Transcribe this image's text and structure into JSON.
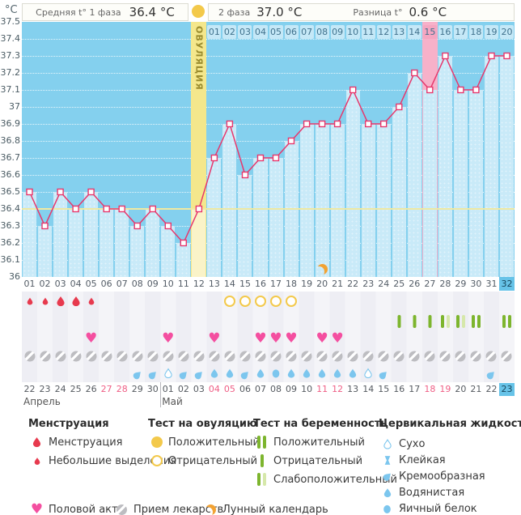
{
  "header": {
    "unit_label": "°C",
    "phase1_label": "Средняя t° 1 фаза",
    "phase1_value": "36.4 °C",
    "phase2_label": "2 фаза",
    "phase2_value": "37.0 °C",
    "diff_label": "Разница t°",
    "diff_value": "0.6 °C"
  },
  "chart_data": {
    "type": "line",
    "title": "График базальной температуры",
    "ylabel": "°C",
    "ylim": [
      36.0,
      37.5
    ],
    "ytick_step": 0.1,
    "grid": true,
    "x_labels": [
      "01",
      "02",
      "03",
      "04",
      "05",
      "06",
      "07",
      "08",
      "09",
      "10",
      "11",
      "12",
      "13",
      "14",
      "15",
      "16",
      "17",
      "18",
      "19",
      "20",
      "21",
      "22",
      "23",
      "24",
      "25",
      "26",
      "27",
      "28",
      "29",
      "30",
      "31",
      "32"
    ],
    "values": [
      36.5,
      36.3,
      36.5,
      36.4,
      36.5,
      36.4,
      36.4,
      36.3,
      36.4,
      36.3,
      36.2,
      36.4,
      36.7,
      36.9,
      36.6,
      36.7,
      36.7,
      36.8,
      36.9,
      36.9,
      36.9,
      37.1,
      36.9,
      36.9,
      37.0,
      37.2,
      37.1,
      37.3,
      37.1,
      37.1,
      37.3,
      37.3
    ],
    "coverline": 36.4,
    "ovulation_day": 12,
    "ovulation_label": "ОВУЛЯЦИЯ",
    "dpo_labels": [
      "01",
      "02",
      "03",
      "04",
      "05",
      "06",
      "07",
      "08",
      "09",
      "10",
      "11",
      "12",
      "13",
      "14",
      "15",
      "16",
      "17",
      "18",
      "19",
      "20"
    ],
    "dpo_highlight": "15",
    "highlight_day": 27,
    "moon_day": 20,
    "current_day": 32
  },
  "tracking_rows": {
    "menstruation": [
      {
        "day": 1,
        "intensity": "light"
      },
      {
        "day": 2,
        "intensity": "light"
      },
      {
        "day": 3,
        "intensity": "heavy"
      },
      {
        "day": 4,
        "intensity": "heavy"
      },
      {
        "day": 5,
        "intensity": "light"
      }
    ],
    "ovulation_tests": [
      {
        "day": 14,
        "result": "negative"
      },
      {
        "day": 15,
        "result": "negative"
      },
      {
        "day": 16,
        "result": "negative"
      },
      {
        "day": 17,
        "result": "negative"
      },
      {
        "day": 18,
        "result": "negative"
      }
    ],
    "pregnancy_tests": [
      {
        "day": 25,
        "result": "negative"
      },
      {
        "day": 26,
        "result": "negative"
      },
      {
        "day": 27,
        "result": "negative"
      },
      {
        "day": 28,
        "result": "weak_positive"
      },
      {
        "day": 29,
        "result": "weak_positive"
      },
      {
        "day": 30,
        "result": "positive"
      },
      {
        "day": 32,
        "result": "positive"
      }
    ],
    "intercourse_days": [
      5,
      10,
      13,
      16,
      17,
      18,
      20,
      21
    ],
    "medication_days": [
      1,
      2,
      3,
      4,
      5,
      6,
      7,
      8,
      9,
      10,
      11,
      12,
      13,
      14,
      15,
      16,
      17,
      18,
      19,
      20,
      21,
      22,
      23,
      24,
      25,
      26,
      27,
      28,
      29,
      30,
      31,
      32
    ],
    "cervical_fluid": [
      {
        "day": 8,
        "type": "creamy"
      },
      {
        "day": 9,
        "type": "creamy"
      },
      {
        "day": 10,
        "type": "dry"
      },
      {
        "day": 11,
        "type": "creamy"
      },
      {
        "day": 12,
        "type": "creamy"
      },
      {
        "day": 13,
        "type": "watery"
      },
      {
        "day": 14,
        "type": "watery"
      },
      {
        "day": 15,
        "type": "creamy"
      },
      {
        "day": 16,
        "type": "watery"
      },
      {
        "day": 17,
        "type": "egg_white"
      },
      {
        "day": 18,
        "type": "watery"
      },
      {
        "day": 19,
        "type": "watery"
      },
      {
        "day": 20,
        "type": "watery"
      },
      {
        "day": 21,
        "type": "watery"
      },
      {
        "day": 22,
        "type": "watery"
      },
      {
        "day": 23,
        "type": "dry"
      },
      {
        "day": 24,
        "type": "creamy"
      },
      {
        "day": 31,
        "type": "creamy"
      }
    ]
  },
  "dates": {
    "months": [
      {
        "label": "Апрель",
        "days": [
          {
            "d": "22"
          },
          {
            "d": "23"
          },
          {
            "d": "24"
          },
          {
            "d": "25"
          },
          {
            "d": "26"
          },
          {
            "d": "27",
            "weekend": true
          },
          {
            "d": "28",
            "weekend": true
          },
          {
            "d": "29"
          },
          {
            "d": "30"
          }
        ]
      },
      {
        "label": "Май",
        "days": [
          {
            "d": "01"
          },
          {
            "d": "02"
          },
          {
            "d": "03"
          },
          {
            "d": "04",
            "weekend": true
          },
          {
            "d": "05",
            "weekend": true
          },
          {
            "d": "06"
          },
          {
            "d": "07"
          },
          {
            "d": "08"
          },
          {
            "d": "09"
          },
          {
            "d": "10"
          },
          {
            "d": "11",
            "weekend": true
          },
          {
            "d": "12",
            "weekend": true
          },
          {
            "d": "13"
          },
          {
            "d": "14"
          },
          {
            "d": "15"
          },
          {
            "d": "16"
          },
          {
            "d": "17"
          },
          {
            "d": "18",
            "weekend": true
          },
          {
            "d": "19",
            "weekend": true
          },
          {
            "d": "20"
          },
          {
            "d": "21"
          },
          {
            "d": "22"
          },
          {
            "d": "23",
            "current": true
          }
        ]
      }
    ]
  },
  "legend": {
    "sections": [
      {
        "title": "Менструация",
        "items": [
          {
            "icon": "menstruation-heavy",
            "label": "Менструация"
          },
          {
            "icon": "menstruation-light",
            "label": "Небольшие выделения"
          }
        ]
      },
      {
        "title": "Тест на овуляцию",
        "items": [
          {
            "icon": "ovulation-positive",
            "label": "Положительный"
          },
          {
            "icon": "ovulation-negative",
            "label": "Отрицательный"
          }
        ]
      },
      {
        "title": "Тест на беременность",
        "items": [
          {
            "icon": "pregnancy-positive",
            "label": "Положительный"
          },
          {
            "icon": "pregnancy-negative",
            "label": "Отрицательный"
          },
          {
            "icon": "pregnancy-weak",
            "label": "Слабоположительный"
          }
        ]
      },
      {
        "title": "Цервикальная жидкость",
        "items": [
          {
            "icon": "fluid-dry",
            "label": "Сухо"
          },
          {
            "icon": "fluid-sticky",
            "label": "Клейкая"
          },
          {
            "icon": "fluid-creamy",
            "label": "Кремообразная"
          },
          {
            "icon": "fluid-watery",
            "label": "Водянистая"
          },
          {
            "icon": "fluid-egg-white",
            "label": "Яичный белок"
          }
        ]
      }
    ],
    "footer": [
      {
        "icon": "intercourse",
        "label": "Половой акт"
      },
      {
        "icon": "medication",
        "label": "Прием лекарств"
      },
      {
        "icon": "moon",
        "label": "Лунный календарь"
      }
    ]
  },
  "colors": {
    "chart_bg": "#84D0EE",
    "fill": "#C9EAF8",
    "ovulation_col": "#F4E78C",
    "ovulation_fill": "#FAF3C8",
    "highlight_col": "#F7B1C9",
    "dpo_cell": "#C5E8F7",
    "dpo_cell_highlight": "#F5A6C1",
    "dpo_text": "#40718C",
    "line": "#E7376C",
    "coverline": "#EFE9A2",
    "current_day_bg": "#67C3E8",
    "menses": "#E73A4E",
    "ovulation_test": "#F3C94B",
    "pregnancy_positive": "#7DB52E",
    "pregnancy_weak": "#D6E8AA",
    "intercourse": "#F44FA0",
    "medication": "#BDBDC1",
    "fluid": "#7CC6EE",
    "moon": "#F2A233",
    "date_weekend": "#EF5E85"
  }
}
